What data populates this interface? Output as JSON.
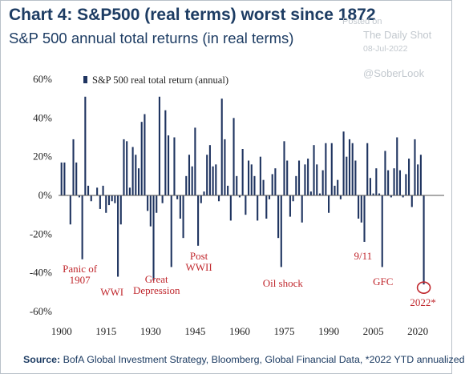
{
  "header": {
    "title": "Chart 4: S&P500 (real terms) worst since 1872",
    "subtitle": "S&P 500 annual total returns (in real terms)"
  },
  "watermark": {
    "posted_on": "Posted on",
    "site": "The Daily Shot",
    "date": "08-Jul-2022",
    "handle": "@SoberLook"
  },
  "footer": {
    "source_label": "Source:",
    "source_text": " BofA Global Investment Strategy, Bloomberg, Global Financial Data, *2022 YTD annualized"
  },
  "colors": {
    "bar": "#1f3460",
    "highlight": "#c0272d",
    "title": "#1d3c63"
  },
  "chart_data": {
    "type": "bar",
    "title": "Chart 4: S&P500 (real terms) worst since 1872",
    "subtitle": "S&P 500 annual total returns (in real terms)",
    "legend": "S&P 500 real total return (annual)",
    "legend_position": "top-left",
    "grid": false,
    "xlim": [
      1899,
      2024
    ],
    "ylim": [
      -60,
      60
    ],
    "x_ticks": [
      1900,
      1915,
      1930,
      1945,
      1960,
      1975,
      1990,
      2005,
      2020
    ],
    "y_ticks": [
      -60,
      -40,
      -20,
      0,
      20,
      40,
      60
    ],
    "y_tick_labels": [
      "-60%",
      "-40%",
      "-20%",
      "0%",
      "20%",
      "40%",
      "60%"
    ],
    "series": [
      {
        "x": [
          1900,
          1901,
          1902,
          1903,
          1904,
          1905,
          1906,
          1907,
          1908,
          1909,
          1910,
          1911,
          1912,
          1913,
          1914,
          1915,
          1916,
          1917,
          1918,
          1919,
          1920,
          1921,
          1922,
          1923,
          1924,
          1925,
          1926,
          1927,
          1928,
          1929,
          1930,
          1931,
          1932,
          1933,
          1934,
          1935,
          1936,
          1937,
          1938,
          1939,
          1940,
          1941,
          1942,
          1943,
          1944,
          1945,
          1946,
          1947,
          1948,
          1949,
          1950,
          1951,
          1952,
          1953,
          1954,
          1955,
          1956,
          1957,
          1958,
          1959,
          1960,
          1961,
          1962,
          1963,
          1964,
          1965,
          1966,
          1967,
          1968,
          1969,
          1970,
          1971,
          1972,
          1973,
          1974,
          1975,
          1976,
          1977,
          1978,
          1979,
          1980,
          1981,
          1982,
          1983,
          1984,
          1985,
          1986,
          1987,
          1988,
          1989,
          1990,
          1991,
          1992,
          1993,
          1994,
          1995,
          1996,
          1997,
          1998,
          1999,
          2000,
          2001,
          2002,
          2003,
          2004,
          2005,
          2006,
          2007,
          2008,
          2009,
          2010,
          2011,
          2012,
          2013,
          2014,
          2015,
          2016,
          2017,
          2018,
          2019,
          2020,
          2021,
          2022
        ],
        "values": [
          17,
          17,
          0,
          -15,
          29,
          17,
          -1,
          -33,
          51,
          5,
          -3,
          0,
          4,
          -7,
          5,
          -9,
          -5,
          -3,
          -4,
          -42,
          -15,
          29,
          28,
          4,
          25,
          21,
          14,
          38,
          42,
          -8,
          -16,
          -44,
          -9,
          51,
          -4,
          44,
          31,
          -37,
          30,
          -2,
          -12,
          -22,
          10,
          21,
          15,
          35,
          -26,
          -4,
          2,
          21,
          26,
          15,
          16,
          -3,
          50,
          29,
          5,
          -13,
          40,
          10,
          -1,
          24,
          -10,
          18,
          16,
          10,
          -13,
          20,
          8,
          -12,
          -2,
          11,
          14,
          -22,
          -37,
          28,
          18,
          -11,
          -3,
          10,
          18,
          -14,
          16,
          19,
          2,
          26,
          16,
          1,
          13,
          27,
          -9,
          27,
          5,
          8,
          -2,
          33,
          20,
          29,
          27,
          18,
          -12,
          -14,
          -24,
          27,
          9,
          1,
          14,
          1,
          -37,
          23,
          13,
          -1,
          14,
          30,
          13,
          -1,
          11,
          19,
          -6,
          29,
          16,
          21,
          -46
        ]
      }
    ],
    "annotations": [
      {
        "lines": [
          "Panic of",
          "1907"
        ],
        "year": 1907
      },
      {
        "lines": [
          "WWI"
        ],
        "year": 1917
      },
      {
        "lines": [
          "Great",
          "Depression"
        ],
        "year": 1932
      },
      {
        "lines": [
          "Post",
          "WWII"
        ],
        "year": 1946
      },
      {
        "lines": [
          "Oil shock"
        ],
        "year": 1974
      },
      {
        "lines": [
          "9/11"
        ],
        "year": 2001
      },
      {
        "lines": [
          "GFC"
        ],
        "year": 2008
      },
      {
        "lines": [
          "2022*"
        ],
        "year": 2022
      }
    ]
  }
}
